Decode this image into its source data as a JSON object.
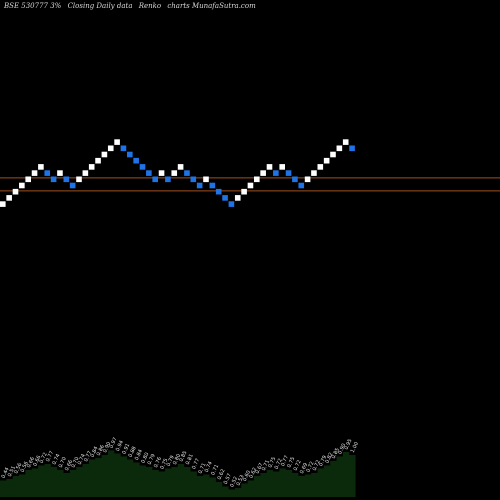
{
  "header": {
    "ticker": "BSE 530777 3%",
    "type_label": "Closing Daily data",
    "chart_kind": "Renko",
    "site": "charts MunafaSutra.com"
  },
  "colors": {
    "background": "#000000",
    "up_brick": "#ffffff",
    "down_brick": "#1e73e6",
    "line": "#a0501e",
    "volume_fill": "#0b2a0b",
    "label": "#e6e6e6"
  },
  "chart_data": {
    "type": "renko",
    "bricks": [
      {
        "dir": "up",
        "level": 0
      },
      {
        "dir": "up",
        "level": 1
      },
      {
        "dir": "up",
        "level": 2
      },
      {
        "dir": "up",
        "level": 3
      },
      {
        "dir": "up",
        "level": 4
      },
      {
        "dir": "up",
        "level": 5
      },
      {
        "dir": "up",
        "level": 6
      },
      {
        "dir": "down",
        "level": 5
      },
      {
        "dir": "down",
        "level": 4
      },
      {
        "dir": "up",
        "level": 5
      },
      {
        "dir": "down",
        "level": 4
      },
      {
        "dir": "down",
        "level": 3
      },
      {
        "dir": "up",
        "level": 4
      },
      {
        "dir": "up",
        "level": 5
      },
      {
        "dir": "up",
        "level": 6
      },
      {
        "dir": "up",
        "level": 7
      },
      {
        "dir": "up",
        "level": 8
      },
      {
        "dir": "up",
        "level": 9
      },
      {
        "dir": "up",
        "level": 10
      },
      {
        "dir": "down",
        "level": 9
      },
      {
        "dir": "down",
        "level": 8
      },
      {
        "dir": "down",
        "level": 7
      },
      {
        "dir": "down",
        "level": 6
      },
      {
        "dir": "down",
        "level": 5
      },
      {
        "dir": "down",
        "level": 4
      },
      {
        "dir": "up",
        "level": 5
      },
      {
        "dir": "down",
        "level": 4
      },
      {
        "dir": "up",
        "level": 5
      },
      {
        "dir": "up",
        "level": 6
      },
      {
        "dir": "down",
        "level": 5
      },
      {
        "dir": "down",
        "level": 4
      },
      {
        "dir": "down",
        "level": 3
      },
      {
        "dir": "up",
        "level": 4
      },
      {
        "dir": "down",
        "level": 3
      },
      {
        "dir": "down",
        "level": 2
      },
      {
        "dir": "down",
        "level": 1
      },
      {
        "dir": "down",
        "level": 0
      },
      {
        "dir": "up",
        "level": 1
      },
      {
        "dir": "up",
        "level": 2
      },
      {
        "dir": "up",
        "level": 3
      },
      {
        "dir": "up",
        "level": 4
      },
      {
        "dir": "up",
        "level": 5
      },
      {
        "dir": "up",
        "level": 6
      },
      {
        "dir": "down",
        "level": 5
      },
      {
        "dir": "up",
        "level": 6
      },
      {
        "dir": "down",
        "level": 5
      },
      {
        "dir": "down",
        "level": 4
      },
      {
        "dir": "down",
        "level": 3
      },
      {
        "dir": "up",
        "level": 4
      },
      {
        "dir": "up",
        "level": 5
      },
      {
        "dir": "up",
        "level": 6
      },
      {
        "dir": "up",
        "level": 7
      },
      {
        "dir": "up",
        "level": 8
      },
      {
        "dir": "up",
        "level": 9
      },
      {
        "dir": "up",
        "level": 10
      },
      {
        "dir": "down",
        "level": 9
      }
    ],
    "reference_lines": [
      4.7,
      2.6
    ],
    "volume_labels": [
      "0.44",
      "0.51",
      "0.56",
      "0.56",
      "0.66",
      "0.66",
      "0.72",
      "0.77",
      "0.74",
      "0.70",
      "0.66",
      "0.70",
      "0.74",
      "0.77",
      "0.84",
      "0.86",
      "0.90",
      "0.97",
      "0.94",
      "0.91",
      "0.88",
      "0.84",
      "0.80",
      "0.79",
      "0.76",
      "0.75",
      "0.79",
      "0.80",
      "0.85",
      "0.81",
      "0.77",
      "0.71",
      "0.74",
      "0.71",
      "0.62",
      "0.57",
      "0.52",
      "0.53",
      "0.60",
      "0.62",
      "0.67",
      "0.71",
      "0.75",
      "0.72",
      "0.77",
      "0.75",
      "0.72",
      "0.69",
      "0.72",
      "0.72",
      "0.79",
      "0.82",
      "0.85",
      "0.90",
      "0.95",
      "1.00"
    ],
    "volume_heights": [
      0.22,
      0.24,
      0.28,
      0.3,
      0.36,
      0.38,
      0.42,
      0.44,
      0.4,
      0.36,
      0.32,
      0.36,
      0.4,
      0.44,
      0.5,
      0.52,
      0.56,
      0.62,
      0.58,
      0.54,
      0.5,
      0.46,
      0.42,
      0.4,
      0.36,
      0.34,
      0.38,
      0.4,
      0.44,
      0.4,
      0.34,
      0.28,
      0.3,
      0.26,
      0.2,
      0.14,
      0.1,
      0.12,
      0.18,
      0.22,
      0.28,
      0.32,
      0.36,
      0.34,
      0.38,
      0.36,
      0.32,
      0.28,
      0.3,
      0.32,
      0.38,
      0.42,
      0.48,
      0.54,
      0.6,
      0.56
    ]
  }
}
